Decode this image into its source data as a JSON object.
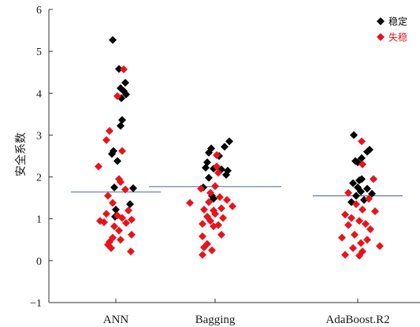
{
  "chart_data": {
    "type": "scatter",
    "title": "",
    "xlabel": "",
    "ylabel": "安全系数",
    "ylim": [
      -1,
      6
    ],
    "yticks": [
      -1,
      0,
      1,
      2,
      3,
      4,
      5,
      6
    ],
    "categories": [
      "ANN",
      "Bagging",
      "AdaBoost.R2"
    ],
    "legend_position": "top-right",
    "colors": {
      "stable": "#000000",
      "unstable": "#e8141c",
      "mean_line": "#5a7aa8"
    },
    "series": [
      {
        "name": "稳定",
        "color": "#000000",
        "points": [
          {
            "x": "ANN",
            "y": 5.27,
            "j": -0.04
          },
          {
            "x": "ANN",
            "y": 4.58,
            "j": 0.04
          },
          {
            "x": "ANN",
            "y": 4.25,
            "j": 0.12
          },
          {
            "x": "ANN",
            "y": 4.12,
            "j": 0.06
          },
          {
            "x": "ANN",
            "y": 4.05,
            "j": 0.1
          },
          {
            "x": "ANN",
            "y": 3.97,
            "j": 0.13
          },
          {
            "x": "ANN",
            "y": 3.88,
            "j": 0.07
          },
          {
            "x": "ANN",
            "y": 3.36,
            "j": 0.08
          },
          {
            "x": "ANN",
            "y": 3.22,
            "j": 0.06
          },
          {
            "x": "ANN",
            "y": 2.62,
            "j": -0.03
          },
          {
            "x": "ANN",
            "y": 2.55,
            "j": -0.05
          },
          {
            "x": "ANN",
            "y": 2.38,
            "j": 0.02
          },
          {
            "x": "ANN",
            "y": 1.75,
            "j": -0.02
          },
          {
            "x": "ANN",
            "y": 1.73,
            "j": 0.22
          },
          {
            "x": "ANN",
            "y": 1.35,
            "j": 0.18
          },
          {
            "x": "ANN",
            "y": 1.22,
            "j": 0.0
          },
          {
            "x": "ANN",
            "y": 1.05,
            "j": -0.01
          },
          {
            "x": "Bagging",
            "y": 2.85,
            "j": 0.18
          },
          {
            "x": "Bagging",
            "y": 2.72,
            "j": 0.12
          },
          {
            "x": "Bagging",
            "y": 2.68,
            "j": -0.05
          },
          {
            "x": "Bagging",
            "y": 2.58,
            "j": -0.08
          },
          {
            "x": "Bagging",
            "y": 2.5,
            "j": 0.05
          },
          {
            "x": "Bagging",
            "y": 2.35,
            "j": -0.1
          },
          {
            "x": "Bagging",
            "y": 2.22,
            "j": -0.12
          },
          {
            "x": "Bagging",
            "y": 2.2,
            "j": -0.02
          },
          {
            "x": "Bagging",
            "y": 2.18,
            "j": 0.08
          },
          {
            "x": "Bagging",
            "y": 2.15,
            "j": 0.16
          },
          {
            "x": "Bagging",
            "y": 2.05,
            "j": 0.14
          },
          {
            "x": "Bagging",
            "y": 1.98,
            "j": -0.08
          },
          {
            "x": "Bagging",
            "y": 1.75,
            "j": -0.15
          },
          {
            "x": "Bagging",
            "y": 1.55,
            "j": -0.04
          },
          {
            "x": "Bagging",
            "y": 1.48,
            "j": -0.02
          },
          {
            "x": "AdaBoost.R2",
            "y": 3.0,
            "j": -0.05
          },
          {
            "x": "AdaBoost.R2",
            "y": 2.65,
            "j": 0.15
          },
          {
            "x": "AdaBoost.R2",
            "y": 2.6,
            "j": 0.12
          },
          {
            "x": "AdaBoost.R2",
            "y": 2.45,
            "j": 0.05
          },
          {
            "x": "AdaBoost.R2",
            "y": 2.38,
            "j": -0.03
          },
          {
            "x": "AdaBoost.R2",
            "y": 2.35,
            "j": 0.0
          },
          {
            "x": "AdaBoost.R2",
            "y": 1.95,
            "j": 0.05
          },
          {
            "x": "AdaBoost.R2",
            "y": 1.92,
            "j": 0.02
          },
          {
            "x": "AdaBoost.R2",
            "y": 1.85,
            "j": -0.06
          },
          {
            "x": "AdaBoost.R2",
            "y": 1.75,
            "j": 0.0
          },
          {
            "x": "AdaBoost.R2",
            "y": 1.72,
            "j": 0.12
          },
          {
            "x": "AdaBoost.R2",
            "y": 1.65,
            "j": 0.04
          },
          {
            "x": "AdaBoost.R2",
            "y": 1.6,
            "j": 0.18
          },
          {
            "x": "AdaBoost.R2",
            "y": 1.55,
            "j": -0.02
          },
          {
            "x": "AdaBoost.R2",
            "y": 1.45,
            "j": 0.08
          },
          {
            "x": "AdaBoost.R2",
            "y": 1.4,
            "j": -0.08
          }
        ]
      },
      {
        "name": "失稳",
        "color": "#e8141c",
        "points": [
          {
            "x": "ANN",
            "y": 4.57,
            "j": 0.1
          },
          {
            "x": "ANN",
            "y": 3.93,
            "j": 0.02
          },
          {
            "x": "ANN",
            "y": 3.1,
            "j": -0.08
          },
          {
            "x": "ANN",
            "y": 2.88,
            "j": -0.12
          },
          {
            "x": "ANN",
            "y": 2.62,
            "j": 0.08
          },
          {
            "x": "ANN",
            "y": 2.25,
            "j": -0.22
          },
          {
            "x": "ANN",
            "y": 1.95,
            "j": 0.04
          },
          {
            "x": "ANN",
            "y": 1.88,
            "j": 0.06
          },
          {
            "x": "ANN",
            "y": 1.7,
            "j": 0.12
          },
          {
            "x": "ANN",
            "y": 1.55,
            "j": -0.1
          },
          {
            "x": "ANN",
            "y": 1.38,
            "j": -0.04
          },
          {
            "x": "ANN",
            "y": 1.2,
            "j": 0.16
          },
          {
            "x": "ANN",
            "y": 1.12,
            "j": -0.12
          },
          {
            "x": "ANN",
            "y": 1.08,
            "j": 0.02
          },
          {
            "x": "ANN",
            "y": 1.02,
            "j": 0.08
          },
          {
            "x": "ANN",
            "y": 0.98,
            "j": 0.2
          },
          {
            "x": "ANN",
            "y": 0.95,
            "j": -0.2
          },
          {
            "x": "ANN",
            "y": 0.92,
            "j": -0.15
          },
          {
            "x": "ANN",
            "y": 0.9,
            "j": 0.13
          },
          {
            "x": "ANN",
            "y": 0.82,
            "j": -0.02
          },
          {
            "x": "ANN",
            "y": 0.72,
            "j": 0.04
          },
          {
            "x": "ANN",
            "y": 0.62,
            "j": 0.2
          },
          {
            "x": "ANN",
            "y": 0.55,
            "j": -0.04
          },
          {
            "x": "ANN",
            "y": 0.5,
            "j": 0.06
          },
          {
            "x": "ANN",
            "y": 0.45,
            "j": -0.08
          },
          {
            "x": "ANN",
            "y": 0.38,
            "j": -0.1
          },
          {
            "x": "ANN",
            "y": 0.3,
            "j": -0.06
          },
          {
            "x": "ANN",
            "y": 0.22,
            "j": 0.19
          },
          {
            "x": "Bagging",
            "y": 2.52,
            "j": 0.02
          },
          {
            "x": "Bagging",
            "y": 2.25,
            "j": 0.02
          },
          {
            "x": "Bagging",
            "y": 2.1,
            "j": 0.04
          },
          {
            "x": "Bagging",
            "y": 1.78,
            "j": 0.0
          },
          {
            "x": "Bagging",
            "y": 1.72,
            "j": -0.18
          },
          {
            "x": "Bagging",
            "y": 1.62,
            "j": -0.06
          },
          {
            "x": "Bagging",
            "y": 1.52,
            "j": 0.06
          },
          {
            "x": "Bagging",
            "y": 1.45,
            "j": 0.15
          },
          {
            "x": "Bagging",
            "y": 1.4,
            "j": -0.08
          },
          {
            "x": "Bagging",
            "y": 1.38,
            "j": -0.32
          },
          {
            "x": "Bagging",
            "y": 1.3,
            "j": 0.22
          },
          {
            "x": "Bagging",
            "y": 1.25,
            "j": 0.08
          },
          {
            "x": "Bagging",
            "y": 1.22,
            "j": -0.14
          },
          {
            "x": "Bagging",
            "y": 1.2,
            "j": -0.02
          },
          {
            "x": "Bagging",
            "y": 1.12,
            "j": 0.0
          },
          {
            "x": "Bagging",
            "y": 1.05,
            "j": -0.1
          },
          {
            "x": "Bagging",
            "y": 1.02,
            "j": 0.1
          },
          {
            "x": "Bagging",
            "y": 0.95,
            "j": -0.06
          },
          {
            "x": "Bagging",
            "y": 0.88,
            "j": -0.16
          },
          {
            "x": "Bagging",
            "y": 0.85,
            "j": 0.04
          },
          {
            "x": "Bagging",
            "y": 0.82,
            "j": -0.02
          },
          {
            "x": "Bagging",
            "y": 0.62,
            "j": 0.08
          },
          {
            "x": "Bagging",
            "y": 0.58,
            "j": -0.16
          },
          {
            "x": "Bagging",
            "y": 0.4,
            "j": -0.1
          },
          {
            "x": "Bagging",
            "y": 0.32,
            "j": -0.14
          },
          {
            "x": "Bagging",
            "y": 0.25,
            "j": -0.04
          },
          {
            "x": "Bagging",
            "y": 0.14,
            "j": -0.16
          },
          {
            "x": "AdaBoost.R2",
            "y": 2.85,
            "j": 0.05
          },
          {
            "x": "AdaBoost.R2",
            "y": 2.3,
            "j": 0.06
          },
          {
            "x": "AdaBoost.R2",
            "y": 1.95,
            "j": 0.2
          },
          {
            "x": "AdaBoost.R2",
            "y": 1.62,
            "j": -0.12
          },
          {
            "x": "AdaBoost.R2",
            "y": 1.48,
            "j": 0.14
          },
          {
            "x": "AdaBoost.R2",
            "y": 1.35,
            "j": -0.02
          },
          {
            "x": "AdaBoost.R2",
            "y": 1.22,
            "j": 0.06
          },
          {
            "x": "AdaBoost.R2",
            "y": 1.18,
            "j": 0.22
          },
          {
            "x": "AdaBoost.R2",
            "y": 1.1,
            "j": -0.16
          },
          {
            "x": "AdaBoost.R2",
            "y": 1.02,
            "j": -0.08
          },
          {
            "x": "AdaBoost.R2",
            "y": 0.95,
            "j": 0.02
          },
          {
            "x": "AdaBoost.R2",
            "y": 0.88,
            "j": 0.1
          },
          {
            "x": "AdaBoost.R2",
            "y": 0.85,
            "j": -0.12
          },
          {
            "x": "AdaBoost.R2",
            "y": 0.75,
            "j": 0.16
          },
          {
            "x": "AdaBoost.R2",
            "y": 0.62,
            "j": -0.04
          },
          {
            "x": "AdaBoost.R2",
            "y": 0.55,
            "j": -0.2
          },
          {
            "x": "AdaBoost.R2",
            "y": 0.5,
            "j": 0.12
          },
          {
            "x": "AdaBoost.R2",
            "y": 0.42,
            "j": 0.04
          },
          {
            "x": "AdaBoost.R2",
            "y": 0.35,
            "j": 0.28
          },
          {
            "x": "AdaBoost.R2",
            "y": 0.3,
            "j": -0.06
          },
          {
            "x": "AdaBoost.R2",
            "y": 0.22,
            "j": 0.06
          },
          {
            "x": "AdaBoost.R2",
            "y": 0.14,
            "j": -0.16
          },
          {
            "x": "AdaBoost.R2",
            "y": 0.12,
            "j": 0.02
          }
        ]
      }
    ],
    "mean_lines": [
      {
        "category": "ANN",
        "value": 1.64
      },
      {
        "category": "Bagging",
        "value": 1.77
      },
      {
        "category": "AdaBoost.R2",
        "value": 1.55
      }
    ]
  }
}
